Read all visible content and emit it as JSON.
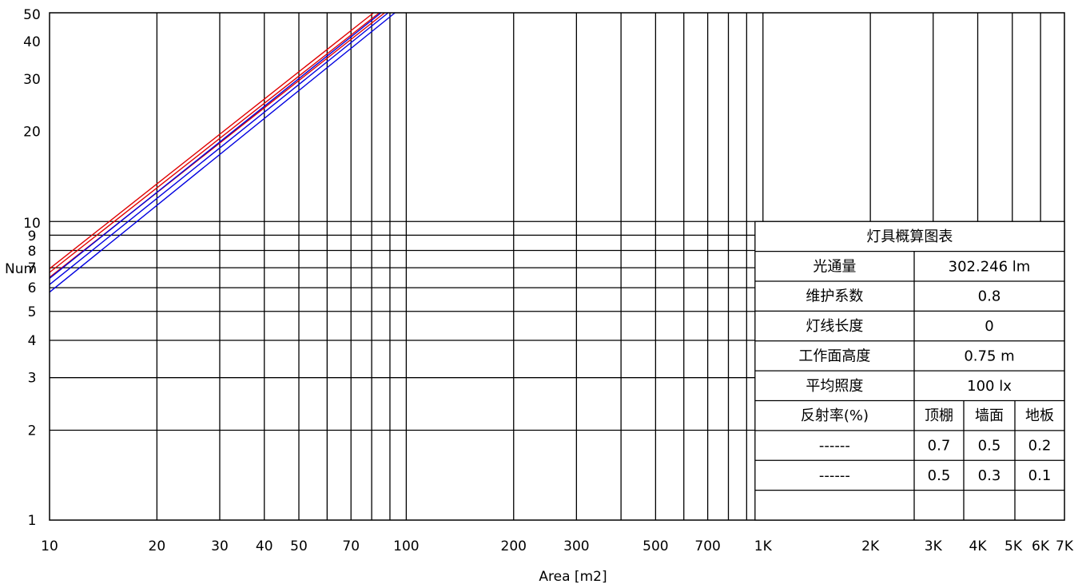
{
  "chart_data": {
    "type": "line",
    "title": "",
    "xlabel": "Area [m2]",
    "ylabel": "Num",
    "xscale": "log",
    "yscale": "log",
    "xlim": [
      10,
      7000
    ],
    "ylim": [
      1,
      50
    ],
    "grid": true,
    "x_ticks": [
      {
        "value": 10,
        "label": "10"
      },
      {
        "value": 20,
        "label": "20"
      },
      {
        "value": 30,
        "label": "30"
      },
      {
        "value": 40,
        "label": "40"
      },
      {
        "value": 50,
        "label": "50"
      },
      {
        "value": 70,
        "label": "70"
      },
      {
        "value": 100,
        "label": "100"
      },
      {
        "value": 200,
        "label": "200"
      },
      {
        "value": 300,
        "label": "300"
      },
      {
        "value": 500,
        "label": "500"
      },
      {
        "value": 700,
        "label": "700"
      },
      {
        "value": 1000,
        "label": "1K"
      },
      {
        "value": 2000,
        "label": "2K"
      },
      {
        "value": 3000,
        "label": "3K"
      },
      {
        "value": 4000,
        "label": "4K"
      },
      {
        "value": 5000,
        "label": "5K"
      },
      {
        "value": 6000,
        "label": "6K"
      },
      {
        "value": 7000,
        "label": "7K"
      }
    ],
    "x_gridlines": [
      20,
      30,
      40,
      50,
      60,
      70,
      80,
      90,
      100,
      200,
      300,
      400,
      500,
      600,
      700,
      800,
      900,
      1000,
      2000,
      3000,
      4000,
      5000,
      6000
    ],
    "y_ticks": [
      {
        "value": 1,
        "label": "1"
      },
      {
        "value": 2,
        "label": "2"
      },
      {
        "value": 3,
        "label": "3"
      },
      {
        "value": 4,
        "label": "4"
      },
      {
        "value": 5,
        "label": "5"
      },
      {
        "value": 6,
        "label": "6"
      },
      {
        "value": 7,
        "label": "7"
      },
      {
        "value": 8,
        "label": "8"
      },
      {
        "value": 9,
        "label": "9"
      },
      {
        "value": 10,
        "label": "10"
      },
      {
        "value": 20,
        "label": "20"
      },
      {
        "value": 30,
        "label": "30"
      },
      {
        "value": 40,
        "label": "40"
      },
      {
        "value": 50,
        "label": "50"
      }
    ],
    "series": [
      {
        "color": "#e00000",
        "x": [
          10,
          81
        ],
        "y": [
          6.95,
          50
        ]
      },
      {
        "color": "#e00000",
        "x": [
          10,
          84
        ],
        "y": [
          6.75,
          50
        ]
      },
      {
        "color": "#e00000",
        "x": [
          10,
          87
        ],
        "y": [
          6.5,
          50
        ]
      },
      {
        "color": "#0000e0",
        "x": [
          10,
          85
        ],
        "y": [
          6.45,
          50
        ]
      },
      {
        "color": "#0000e0",
        "x": [
          10,
          89
        ],
        "y": [
          6.15,
          50
        ]
      },
      {
        "color": "#0000e0",
        "x": [
          10,
          93
        ],
        "y": [
          5.8,
          50
        ]
      }
    ],
    "table": {
      "title": "灯具概算图表",
      "rows": [
        {
          "label": "光通量",
          "value": "302.246 lm"
        },
        {
          "label": "维护系数",
          "value": "0.8"
        },
        {
          "label": "灯线长度",
          "value": "0"
        },
        {
          "label": "工作面高度",
          "value": "0.75 m"
        },
        {
          "label": "平均照度",
          "value": "100 lx"
        }
      ],
      "reflect_header": {
        "label": "反射率(%)",
        "cols": [
          "顶棚",
          "墙面",
          "地板"
        ]
      },
      "reflect_rows": [
        {
          "legend": "------",
          "color": "#0000e0",
          "values": [
            "0.7",
            "0.5",
            "0.2"
          ]
        },
        {
          "legend": "------",
          "color": "#e00000",
          "values": [
            "0.5",
            "0.3",
            "0.1"
          ]
        }
      ]
    }
  }
}
